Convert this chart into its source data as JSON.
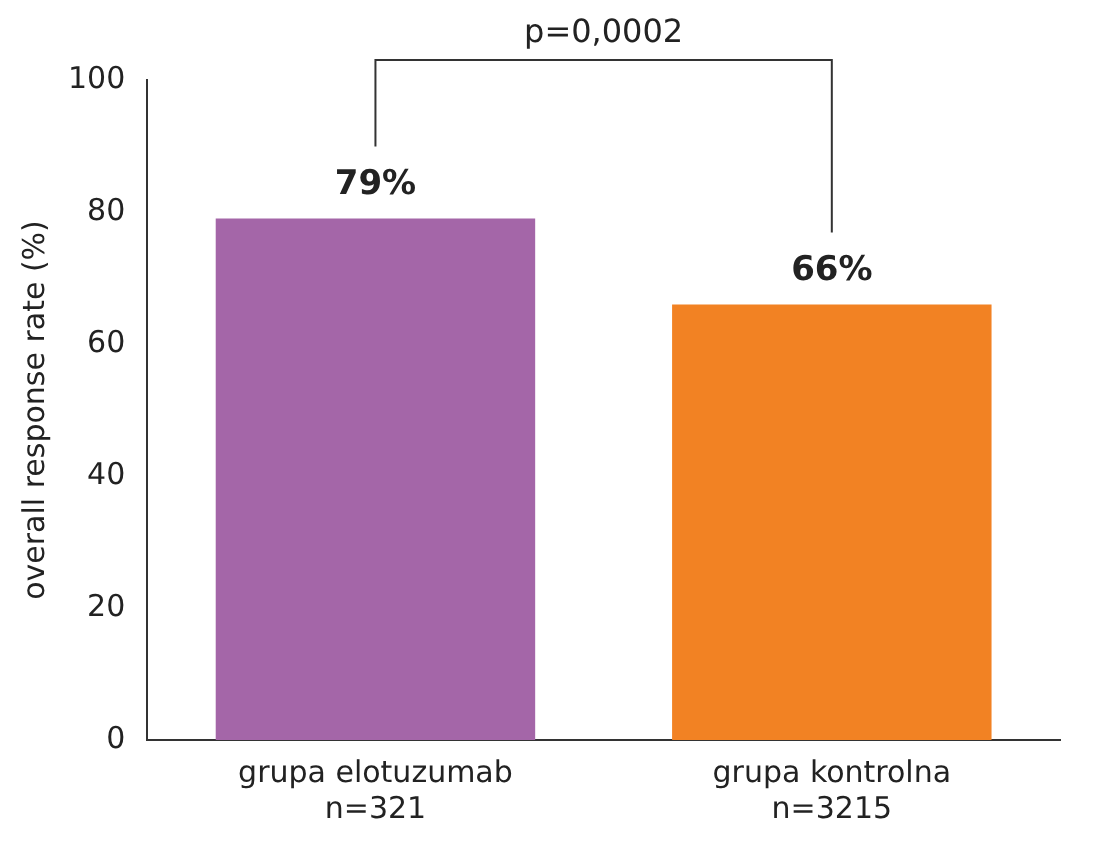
{
  "chart_data": {
    "type": "bar",
    "ylabel": "overall response rate (%)",
    "categories": [
      "grupa elotuzumab\nn=321",
      "grupa kontrolna\nn=3215"
    ],
    "values": [
      79,
      66
    ],
    "colors": [
      "#a466a8",
      "#f28223"
    ],
    "value_labels": [
      "79%",
      "66%"
    ],
    "ylim": [
      0,
      100
    ],
    "yticks": [
      0,
      20,
      40,
      60,
      80,
      100
    ],
    "grid": false,
    "legend": false,
    "annotations": [
      "p=0,0002"
    ]
  }
}
